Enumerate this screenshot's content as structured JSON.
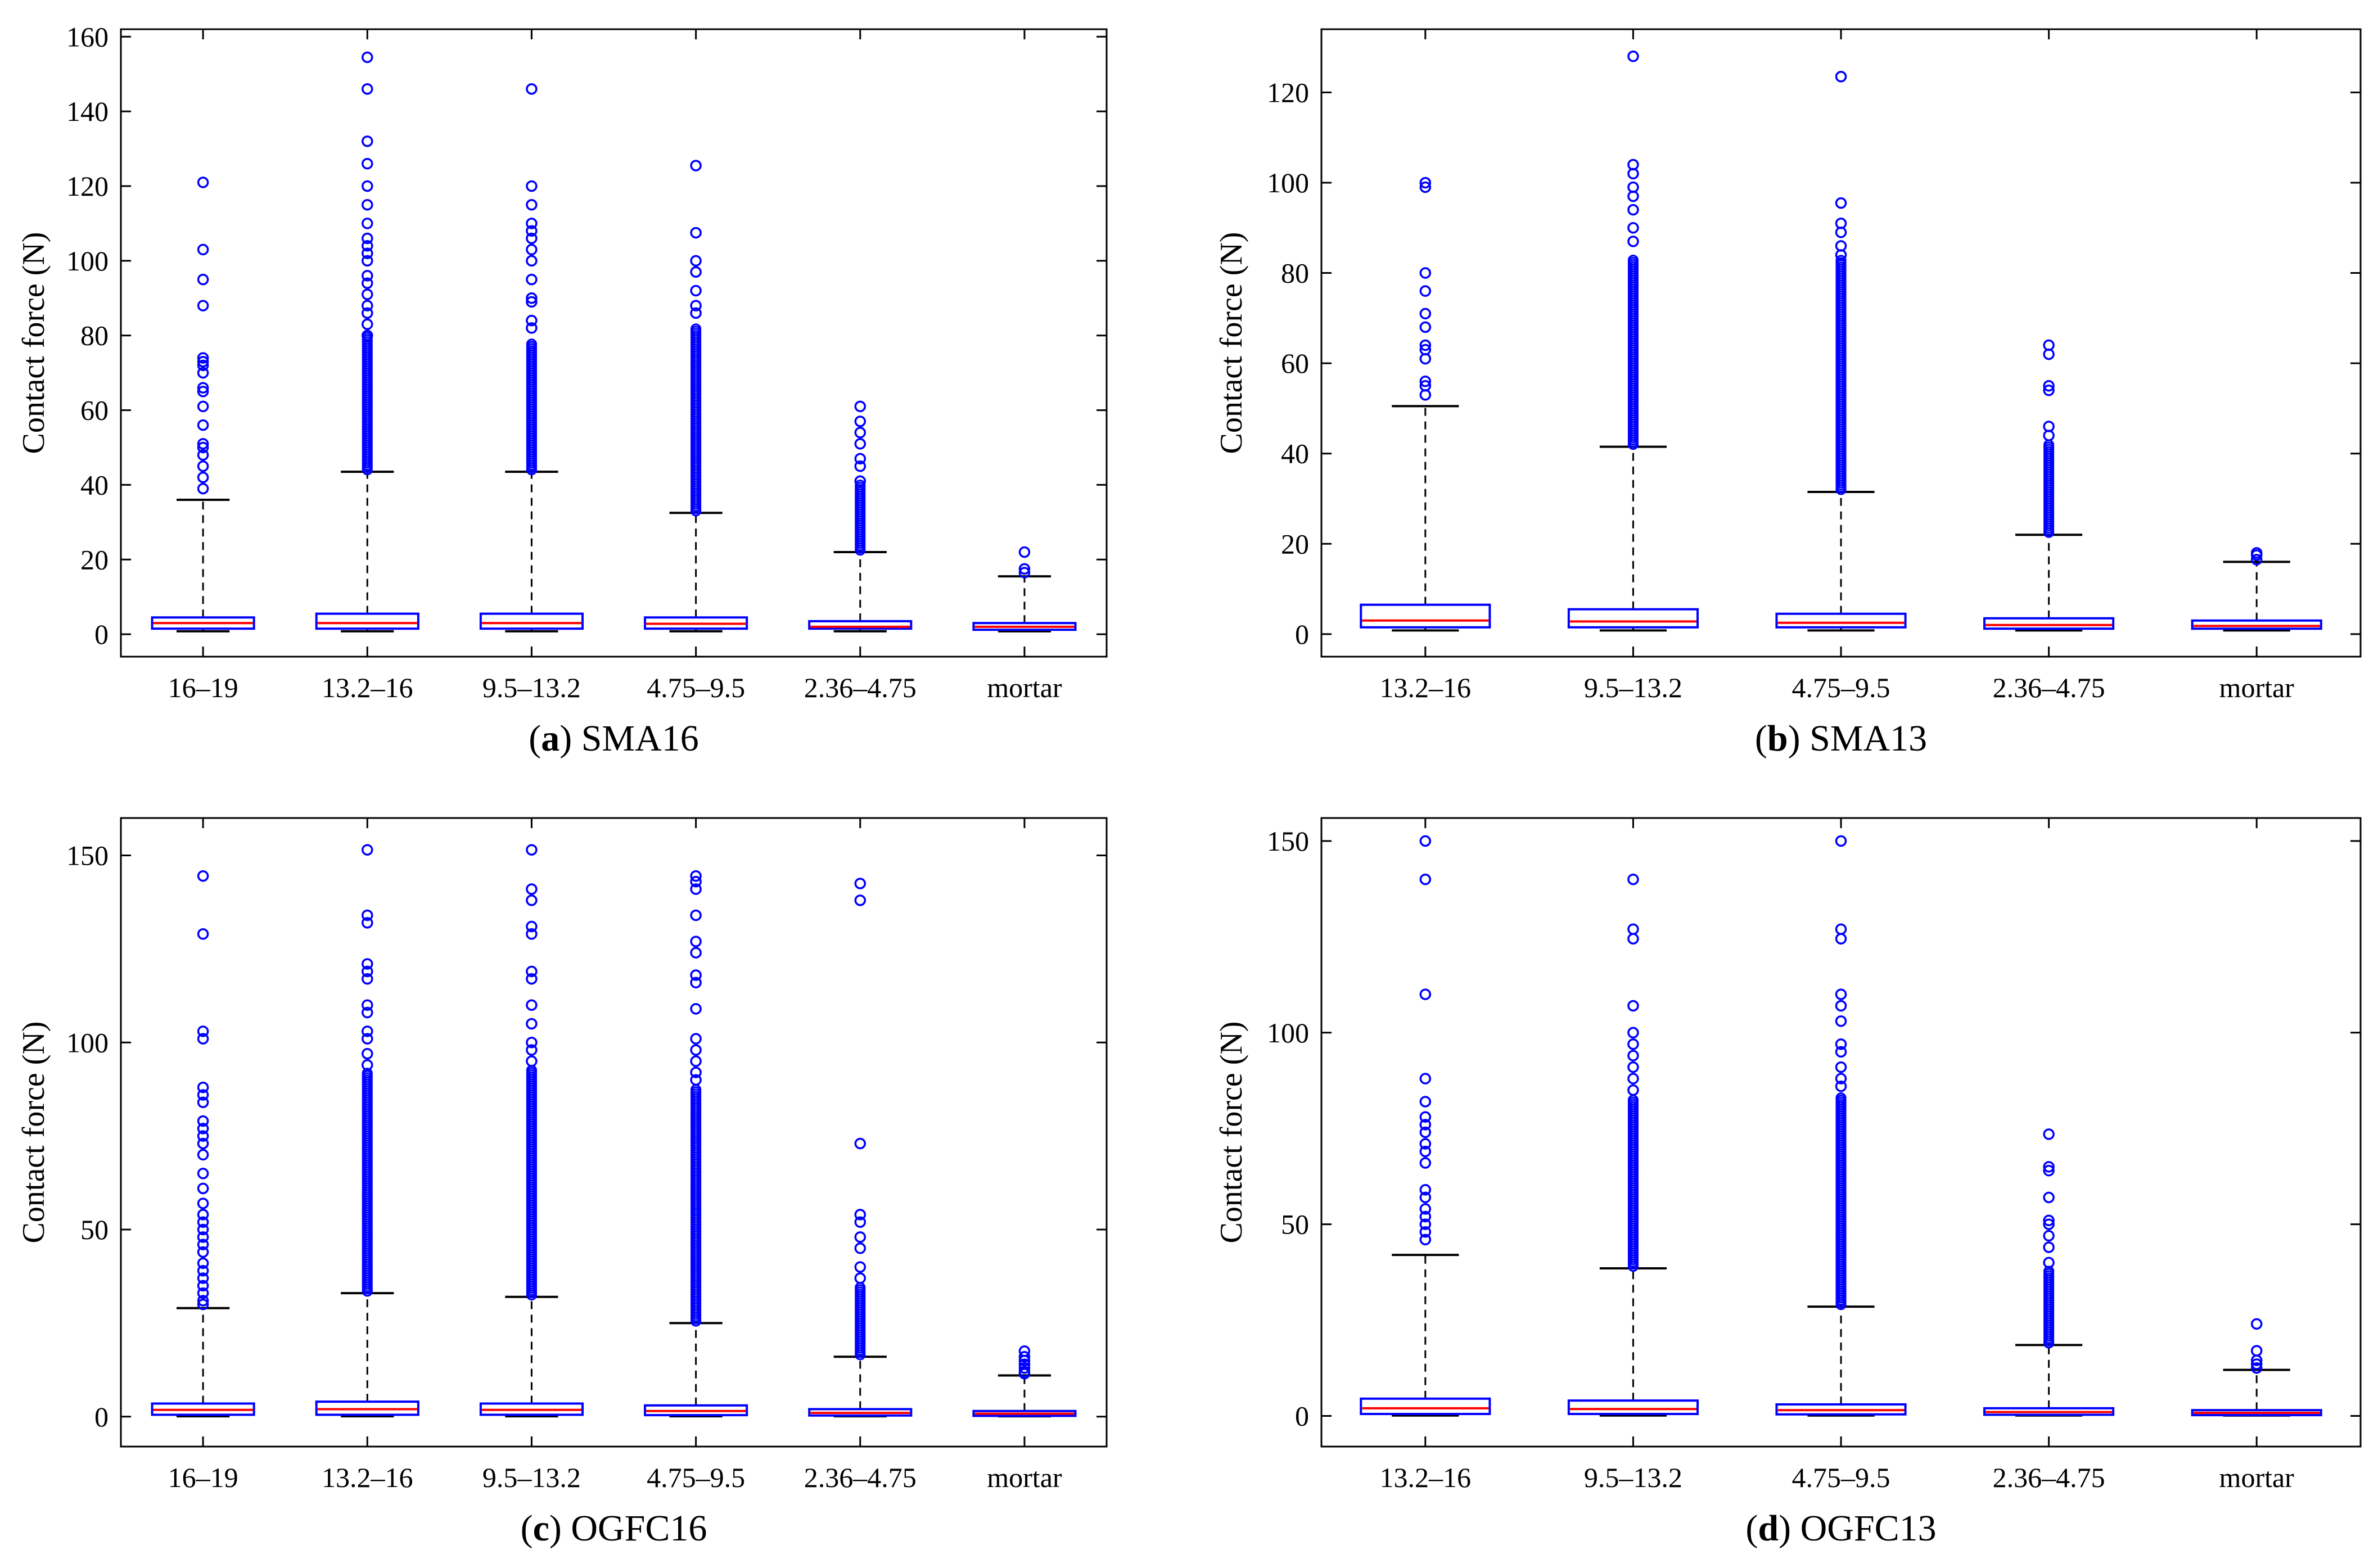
{
  "chart_data": [
    {
      "type": "box",
      "id": "a",
      "caption_letter": "a",
      "caption_text": "SMA16",
      "ylabel": "Contact force (N)",
      "ylim": [
        -6,
        162
      ],
      "yticks": [
        0,
        20,
        40,
        60,
        80,
        100,
        120,
        140,
        160
      ],
      "categories": [
        "16–19",
        "13.2–16",
        "9.5–13.2",
        "4.75–9.5",
        "2.36–4.75",
        "mortar"
      ],
      "boxes": [
        {
          "q1": 1.5,
          "median": 3.0,
          "q3": 4.5,
          "whisker_low": 0.8,
          "whisker_high": 36,
          "outliers": [
            39,
            42,
            45,
            48,
            50,
            51,
            56,
            61,
            65,
            66,
            70,
            72,
            73,
            74,
            88,
            95,
            103,
            121
          ]
        },
        {
          "q1": 1.5,
          "median": 3.0,
          "q3": 5.5,
          "whisker_low": 0.8,
          "whisker_high": 43.5,
          "outliers": [
            132,
            146,
            154.5,
            126,
            120,
            115,
            110,
            106,
            104,
            102,
            100,
            96,
            94,
            91,
            88,
            86,
            83,
            80
          ],
          "outlier_bands": [
            [
              44,
              80
            ]
          ]
        },
        {
          "q1": 1.5,
          "median": 3.0,
          "q3": 5.5,
          "whisker_low": 0.8,
          "whisker_high": 43.5,
          "outliers": [
            146,
            120,
            115,
            110,
            108,
            106,
            103,
            100,
            95,
            90,
            89,
            84,
            82
          ],
          "outlier_bands": [
            [
              44,
              78
            ]
          ]
        },
        {
          "q1": 1.5,
          "median": 2.8,
          "q3": 4.5,
          "whisker_low": 0.8,
          "whisker_high": 32.5,
          "outliers": [
            125.5,
            107.5,
            100,
            97,
            92,
            88,
            86
          ],
          "outlier_bands": [
            [
              33,
              82
            ]
          ]
        },
        {
          "q1": 1.5,
          "median": 2.0,
          "q3": 3.5,
          "whisker_low": 0.8,
          "whisker_high": 22,
          "outliers": [
            61,
            57,
            54,
            51,
            47,
            45,
            41
          ],
          "outlier_bands": [
            [
              22.5,
              40
            ]
          ]
        },
        {
          "q1": 1.2,
          "median": 2.0,
          "q3": 3.0,
          "whisker_low": 0.8,
          "whisker_high": 15.5,
          "outliers": [
            16.5,
            17.5,
            22
          ]
        }
      ]
    },
    {
      "type": "box",
      "id": "b",
      "caption_letter": "b",
      "caption_text": "SMA13",
      "ylabel": "Contact force (N)",
      "ylim": [
        -5,
        134
      ],
      "yticks": [
        0,
        20,
        40,
        60,
        80,
        100,
        120
      ],
      "categories": [
        "13.2–16",
        "9.5–13.2",
        "4.75–9.5",
        "2.36–4.75",
        "mortar"
      ],
      "boxes": [
        {
          "q1": 1.5,
          "median": 3.0,
          "q3": 6.5,
          "whisker_low": 0.8,
          "whisker_high": 50.5,
          "outliers": [
            53,
            55,
            56,
            61,
            63,
            64,
            68,
            71,
            76,
            80,
            99,
            100
          ]
        },
        {
          "q1": 1.5,
          "median": 2.8,
          "q3": 5.5,
          "whisker_low": 0.8,
          "whisker_high": 41.5,
          "outliers": [
            128,
            104,
            102,
            99,
            97,
            94,
            90,
            87
          ],
          "outlier_bands": [
            [
              42,
              83
            ]
          ]
        },
        {
          "q1": 1.5,
          "median": 2.5,
          "q3": 4.5,
          "whisker_low": 0.8,
          "whisker_high": 31.5,
          "outliers": [
            123.5,
            95.5,
            91,
            89,
            86,
            84
          ],
          "outlier_bands": [
            [
              32,
              83
            ]
          ]
        },
        {
          "q1": 1.2,
          "median": 2.0,
          "q3": 3.5,
          "whisker_low": 0.8,
          "whisker_high": 22,
          "outliers": [
            64,
            62,
            55,
            54,
            46,
            44
          ],
          "outlier_bands": [
            [
              22.5,
              42
            ]
          ]
        },
        {
          "q1": 1.2,
          "median": 1.8,
          "q3": 3.0,
          "whisker_low": 0.8,
          "whisker_high": 16,
          "outliers": [
            16.5,
            17.5,
            18
          ]
        }
      ]
    },
    {
      "type": "box",
      "id": "c",
      "caption_letter": "c",
      "caption_text": "OGFC16",
      "ylabel": "Contact force (N)",
      "ylim": [
        -8,
        160
      ],
      "yticks": [
        0,
        50,
        100,
        150
      ],
      "categories": [
        "16–19",
        "13.2–16",
        "9.5–13.2",
        "4.75–9.5",
        "2.36–4.75",
        "mortar"
      ],
      "boxes": [
        {
          "q1": 0.5,
          "median": 1.8,
          "q3": 3.5,
          "whisker_low": 0.1,
          "whisker_high": 29,
          "outliers": [
            30,
            31,
            33,
            35,
            37,
            39,
            41,
            44,
            46,
            48,
            50,
            52,
            54,
            57,
            61,
            65,
            70,
            73,
            75,
            77,
            79,
            84,
            86,
            88,
            101,
            103,
            129,
            144.5
          ]
        },
        {
          "q1": 0.5,
          "median": 2.0,
          "q3": 4.0,
          "whisker_low": 0.1,
          "whisker_high": 33,
          "outliers": [
            151.5,
            134,
            132,
            121,
            119,
            117,
            110,
            108,
            103,
            101,
            97,
            94
          ],
          "outlier_bands": [
            [
              33.5,
              92
            ]
          ]
        },
        {
          "q1": 0.5,
          "median": 1.8,
          "q3": 3.5,
          "whisker_low": 0.1,
          "whisker_high": 32,
          "outliers": [
            151.5,
            141,
            138,
            131,
            129,
            119,
            117,
            110,
            105,
            100,
            98,
            95
          ],
          "outlier_bands": [
            [
              32.5,
              93
            ]
          ]
        },
        {
          "q1": 0.4,
          "median": 1.5,
          "q3": 3.0,
          "whisker_low": 0.1,
          "whisker_high": 25,
          "outliers": [
            144.5,
            143,
            141,
            134,
            127,
            124,
            118,
            116,
            109,
            101,
            98,
            95,
            92,
            90
          ],
          "outlier_bands": [
            [
              25.5,
              88
            ]
          ]
        },
        {
          "q1": 0.3,
          "median": 1.0,
          "q3": 2.0,
          "whisker_low": 0.1,
          "whisker_high": 16,
          "outliers": [
            142.5,
            138,
            73,
            54,
            52,
            48,
            45,
            40,
            37
          ],
          "outlier_bands": [
            [
              16.5,
              35
            ]
          ]
        },
        {
          "q1": 0.2,
          "median": 0.8,
          "q3": 1.5,
          "whisker_low": 0.1,
          "whisker_high": 11,
          "outliers": [
            11.5,
            12,
            13,
            14,
            15,
            16,
            17.5
          ]
        }
      ]
    },
    {
      "type": "box",
      "id": "d",
      "caption_letter": "d",
      "caption_text": "OGFC13",
      "ylabel": "Contact force (N)",
      "ylim": [
        -8,
        156
      ],
      "yticks": [
        0,
        50,
        100,
        150
      ],
      "categories": [
        "13.2–16",
        "9.5–13.2",
        "4.75–9.5",
        "2.36–4.75",
        "mortar"
      ],
      "boxes": [
        {
          "q1": 0.5,
          "median": 2.0,
          "q3": 4.5,
          "whisker_low": 0.1,
          "whisker_high": 42,
          "outliers": [
            46,
            48,
            50,
            52,
            54,
            57,
            59,
            66,
            69,
            71,
            74,
            76,
            78,
            82,
            88,
            110,
            140,
            150
          ]
        },
        {
          "q1": 0.5,
          "median": 1.8,
          "q3": 4.0,
          "whisker_low": 0.1,
          "whisker_high": 38.5,
          "outliers": [
            140,
            127,
            124.5,
            107,
            100,
            97,
            94,
            91,
            88,
            85
          ],
          "outlier_bands": [
            [
              39,
              83
            ]
          ]
        },
        {
          "q1": 0.4,
          "median": 1.5,
          "q3": 3.0,
          "whisker_low": 0.1,
          "whisker_high": 28.5,
          "outliers": [
            150,
            127,
            124.5,
            110,
            107,
            103,
            97,
            95,
            91,
            88,
            86
          ],
          "outlier_bands": [
            [
              29,
              83
            ]
          ]
        },
        {
          "q1": 0.3,
          "median": 1.0,
          "q3": 2.0,
          "whisker_low": 0.1,
          "whisker_high": 18.5,
          "outliers": [
            73.5,
            65,
            64,
            57,
            51,
            50,
            47,
            44,
            40
          ],
          "outlier_bands": [
            [
              19,
              38
            ]
          ]
        },
        {
          "q1": 0.2,
          "median": 0.8,
          "q3": 1.5,
          "whisker_low": 0.1,
          "whisker_high": 12,
          "outliers": [
            12.5,
            13.5,
            14.5,
            17,
            24
          ]
        }
      ]
    }
  ],
  "colors": {
    "box": "#0000ff",
    "median": "#ff0000",
    "whisker": "#000000",
    "outlier": "#0000ff",
    "axes": "#000000"
  }
}
